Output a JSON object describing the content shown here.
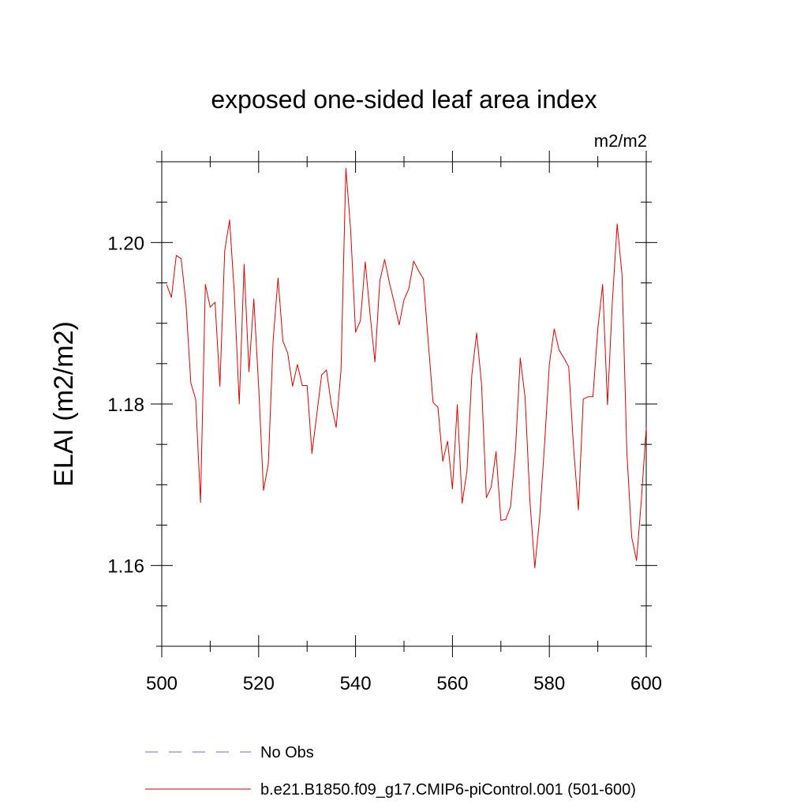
{
  "chart_data": {
    "type": "line",
    "title": "exposed one-sided leaf area index",
    "units": "m2/m2",
    "ylabel": "ELAI  (m2/m2)",
    "xlabel": "",
    "xlim": [
      500,
      600
    ],
    "ylim": [
      1.15,
      1.21
    ],
    "xticks": [
      500,
      520,
      540,
      560,
      580,
      600
    ],
    "xtick_labels": [
      "500",
      "520",
      "540",
      "560",
      "580",
      "600"
    ],
    "yticks": [
      1.16,
      1.18,
      1.2
    ],
    "ytick_labels": [
      "1.16",
      "1.18",
      "1.20"
    ],
    "grid": false,
    "legend_position": "bottom",
    "legend": [
      {
        "label": "No Obs",
        "color": "#6b6bd6",
        "style": "dashed"
      },
      {
        "label": "b.e21.B1850.f09_g17.CMIP6-piControl.001 (501-600)",
        "color": "#e00000",
        "style": "solid"
      }
    ],
    "series": [
      {
        "name": "b.e21.B1850.f09_g17.CMIP6-piControl.001 (501-600)",
        "color": "#e00000",
        "x": [
          501,
          502,
          503,
          504,
          505,
          506,
          507,
          508,
          509,
          510,
          511,
          512,
          513,
          514,
          515,
          516,
          517,
          518,
          519,
          520,
          521,
          522,
          523,
          524,
          525,
          526,
          527,
          528,
          529,
          530,
          531,
          532,
          533,
          534,
          535,
          536,
          537,
          538,
          539,
          540,
          541,
          542,
          543,
          544,
          545,
          546,
          547,
          548,
          549,
          550,
          551,
          552,
          553,
          554,
          555,
          556,
          557,
          558,
          559,
          560,
          561,
          562,
          563,
          564,
          565,
          566,
          567,
          568,
          569,
          570,
          571,
          572,
          573,
          574,
          575,
          576,
          577,
          578,
          579,
          580,
          581,
          582,
          583,
          584,
          585,
          586,
          587,
          588,
          589,
          590,
          591,
          592,
          593,
          594,
          595,
          596,
          597,
          598,
          599,
          600
        ],
        "values": [
          1.1948,
          1.1932,
          1.1984,
          1.198,
          1.1925,
          1.1826,
          1.1806,
          1.1678,
          1.1948,
          1.192,
          1.1926,
          1.1822,
          1.199,
          1.2028,
          1.1935,
          1.18,
          1.1973,
          1.184,
          1.193,
          1.1822,
          1.1693,
          1.1726,
          1.188,
          1.1956,
          1.1878,
          1.1863,
          1.1822,
          1.1849,
          1.1823,
          1.1823,
          1.1739,
          1.1787,
          1.1836,
          1.1842,
          1.1799,
          1.1771,
          1.1842,
          1.2092,
          1.2015,
          1.1889,
          1.1903,
          1.1976,
          1.1911,
          1.1852,
          1.1952,
          1.1979,
          1.195,
          1.1925,
          1.1898,
          1.1929,
          1.1943,
          1.1977,
          1.1965,
          1.1955,
          1.1877,
          1.1802,
          1.1796,
          1.1729,
          1.1754,
          1.1695,
          1.1799,
          1.1677,
          1.1717,
          1.1836,
          1.1888,
          1.1825,
          1.1684,
          1.1697,
          1.1741,
          1.1656,
          1.1657,
          1.1673,
          1.1743,
          1.1857,
          1.1808,
          1.1679,
          1.1597,
          1.1659,
          1.1749,
          1.1849,
          1.1893,
          1.1867,
          1.1857,
          1.1846,
          1.1746,
          1.1669,
          1.1806,
          1.1809,
          1.1809,
          1.1893,
          1.1948,
          1.1799,
          1.1926,
          1.2023,
          1.196,
          1.174,
          1.1635,
          1.1606,
          1.1682,
          1.1771
        ]
      }
    ]
  }
}
